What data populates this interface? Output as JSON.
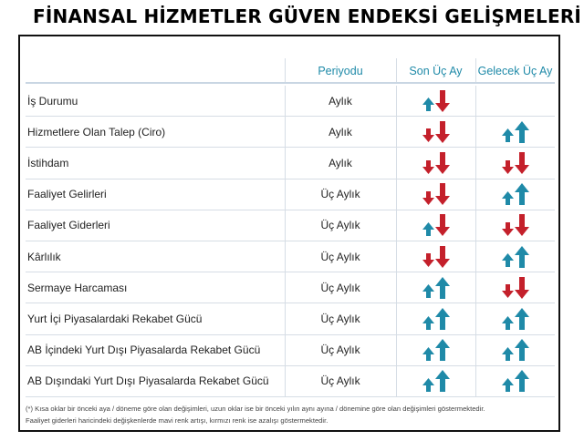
{
  "title": "FİNANSAL HİZMETLER GÜVEN ENDEKSİ GELİŞMELERİ",
  "header": {
    "col_period": "Periyodu",
    "col_last": "Son Üç Ay",
    "col_next": "Gelecek Üç Ay"
  },
  "colors": {
    "up": "#1f8aa8",
    "down": "#c4202b",
    "header_text": "#1f8aa8"
  },
  "rows": [
    {
      "label": "İş Durumu",
      "period": "Aylık",
      "last": [
        "up-small",
        "down-big"
      ],
      "next": []
    },
    {
      "label": "Hizmetlere Olan Talep (Ciro)",
      "period": "Aylık",
      "last": [
        "down-small",
        "down-big"
      ],
      "next": [
        "up-small",
        "up-big"
      ]
    },
    {
      "label": "İstihdam",
      "period": "Aylık",
      "last": [
        "down-small",
        "down-big"
      ],
      "next": [
        "down-small",
        "down-big"
      ]
    },
    {
      "label": "Faaliyet Gelirleri",
      "period": "Üç Aylık",
      "last": [
        "down-small",
        "down-big"
      ],
      "next": [
        "up-small",
        "up-big"
      ]
    },
    {
      "label": "Faaliyet Giderleri",
      "period": "Üç Aylık",
      "last": [
        "up-small",
        "down-big"
      ],
      "next": [
        "down-small",
        "down-big"
      ]
    },
    {
      "label": "Kârlılık",
      "period": "Üç Aylık",
      "last": [
        "down-small",
        "down-big"
      ],
      "next": [
        "up-small",
        "up-big"
      ]
    },
    {
      "label": "Sermaye Harcaması",
      "period": "Üç Aylık",
      "last": [
        "up-small",
        "up-big"
      ],
      "next": [
        "down-small",
        "down-big"
      ]
    },
    {
      "label": "Yurt İçi Piyasalardaki Rekabet Gücü",
      "period": "Üç Aylık",
      "last": [
        "up-small",
        "up-big"
      ],
      "next": [
        "up-small",
        "up-big"
      ]
    },
    {
      "label": "AB İçindeki Yurt Dışı Piyasalarda Rekabet Gücü",
      "period": "Üç Aylık",
      "last": [
        "up-small",
        "up-big"
      ],
      "next": [
        "up-small",
        "up-big"
      ]
    },
    {
      "label": "AB Dışındaki Yurt Dışı Piyasalarda Rekabet Gücü",
      "period": "Üç Aylık",
      "last": [
        "up-small",
        "up-big"
      ],
      "next": [
        "up-small",
        "up-big"
      ]
    }
  ],
  "notes": {
    "line1": "(*) Kısa oklar bir önceki aya / döneme göre olan değişimleri, uzun oklar ise bir önceki yılın aynı ayına / dönemine göre olan değişimleri göstermektedir.",
    "line2": "Faaliyet giderleri haricindeki değişkenlerde mavi renk artışı, kırmızı renk ise azalışı göstermektedir."
  }
}
